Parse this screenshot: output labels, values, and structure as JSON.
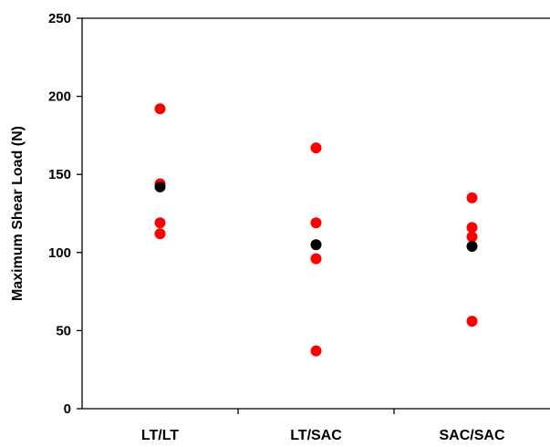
{
  "chart_data": {
    "type": "scatter",
    "title": "",
    "xlabel": "",
    "ylabel": "Maximum Shear Load (N)",
    "categories": [
      "LT/LT",
      "LT/SAC",
      "SAC/SAC"
    ],
    "ylim": [
      0,
      250
    ],
    "yticks": [
      0,
      50,
      100,
      150,
      200,
      250
    ],
    "grid": false,
    "legend": "none",
    "series": [
      {
        "color": "#ff0000",
        "points": [
          {
            "x": "LT/LT",
            "y": 192
          },
          {
            "x": "LT/LT",
            "y": 144
          },
          {
            "x": "LT/LT",
            "y": 119
          },
          {
            "x": "LT/LT",
            "y": 112
          },
          {
            "x": "LT/SAC",
            "y": 167
          },
          {
            "x": "LT/SAC",
            "y": 119
          },
          {
            "x": "LT/SAC",
            "y": 96
          },
          {
            "x": "LT/SAC",
            "y": 37
          },
          {
            "x": "SAC/SAC",
            "y": 135
          },
          {
            "x": "SAC/SAC",
            "y": 116
          },
          {
            "x": "SAC/SAC",
            "y": 110
          },
          {
            "x": "SAC/SAC",
            "y": 56
          }
        ]
      },
      {
        "color": "#000000",
        "points": [
          {
            "x": "LT/LT",
            "y": 142
          },
          {
            "x": "LT/SAC",
            "y": 105
          },
          {
            "x": "SAC/SAC",
            "y": 104
          }
        ]
      }
    ]
  }
}
